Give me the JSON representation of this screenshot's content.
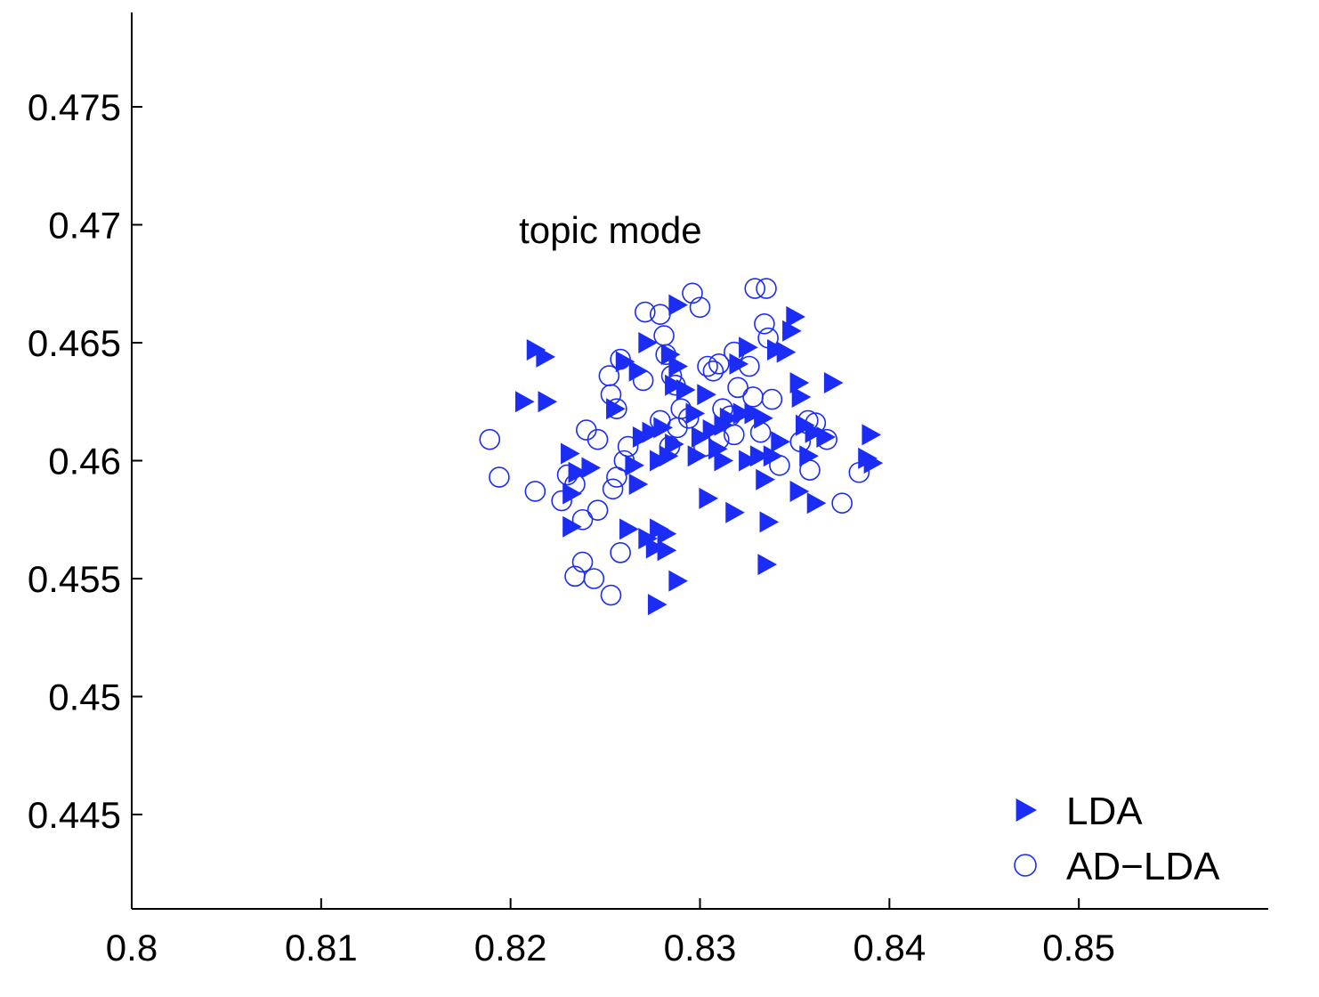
{
  "chart_data": {
    "type": "scatter",
    "title": "",
    "xlabel": "",
    "ylabel": "",
    "xlim": [
      0.8,
      0.86
    ],
    "ylim": [
      0.441,
      0.479
    ],
    "xticks": [
      0.8,
      0.81,
      0.82,
      0.83,
      0.84,
      0.85
    ],
    "yticks": [
      0.445,
      0.45,
      0.455,
      0.46,
      0.465,
      0.47,
      0.475
    ],
    "xtick_labels": [
      "0.8",
      "0.81",
      "0.82",
      "0.83",
      "0.84",
      "0.85"
    ],
    "ytick_labels": [
      "0.445",
      "0.45",
      "0.455",
      "0.46",
      "0.465",
      "0.47",
      "0.475"
    ],
    "grid": false,
    "legend_position": "bottom-right",
    "annotation": {
      "text": "topic mode",
      "x": 0.8295,
      "y": 0.4698
    },
    "series": [
      {
        "name": "LDA",
        "marker": "triangle-right-filled",
        "color": "#1a2cf5",
        "points": [
          [
            0.8213,
            0.4647
          ],
          [
            0.8218,
            0.4644
          ],
          [
            0.8207,
            0.4625
          ],
          [
            0.8219,
            0.4625
          ],
          [
            0.8231,
            0.4603
          ],
          [
            0.8235,
            0.4595
          ],
          [
            0.8242,
            0.4597
          ],
          [
            0.8232,
            0.4586
          ],
          [
            0.8232,
            0.4572
          ],
          [
            0.8255,
            0.4622
          ],
          [
            0.826,
            0.4642
          ],
          [
            0.8267,
            0.4638
          ],
          [
            0.8272,
            0.465
          ],
          [
            0.8265,
            0.4598
          ],
          [
            0.8267,
            0.459
          ],
          [
            0.8269,
            0.461
          ],
          [
            0.8274,
            0.4612
          ],
          [
            0.828,
            0.4614
          ],
          [
            0.8278,
            0.46
          ],
          [
            0.8283,
            0.4602
          ],
          [
            0.8286,
            0.4607
          ],
          [
            0.8262,
            0.4571
          ],
          [
            0.8272,
            0.4567
          ],
          [
            0.8278,
            0.4571
          ],
          [
            0.8282,
            0.4569
          ],
          [
            0.8276,
            0.4563
          ],
          [
            0.8282,
            0.4562
          ],
          [
            0.8288,
            0.4549
          ],
          [
            0.8277,
            0.4539
          ],
          [
            0.8288,
            0.4666
          ],
          [
            0.8284,
            0.4645
          ],
          [
            0.8288,
            0.464
          ],
          [
            0.8286,
            0.4632
          ],
          [
            0.8292,
            0.463
          ],
          [
            0.8297,
            0.462
          ],
          [
            0.8303,
            0.4628
          ],
          [
            0.83,
            0.461
          ],
          [
            0.8306,
            0.4613
          ],
          [
            0.8312,
            0.4615
          ],
          [
            0.8309,
            0.4605
          ],
          [
            0.8315,
            0.4618
          ],
          [
            0.8322,
            0.462
          ],
          [
            0.8328,
            0.462
          ],
          [
            0.8333,
            0.4618
          ],
          [
            0.8298,
            0.4602
          ],
          [
            0.8304,
            0.4584
          ],
          [
            0.8318,
            0.4578
          ],
          [
            0.8312,
            0.46
          ],
          [
            0.8325,
            0.46
          ],
          [
            0.8331,
            0.4602
          ],
          [
            0.8338,
            0.4602
          ],
          [
            0.8334,
            0.4592
          ],
          [
            0.8342,
            0.4608
          ],
          [
            0.8336,
            0.4574
          ],
          [
            0.8335,
            0.4556
          ],
          [
            0.832,
            0.4641
          ],
          [
            0.8325,
            0.4648
          ],
          [
            0.834,
            0.4647
          ],
          [
            0.8345,
            0.4646
          ],
          [
            0.8348,
            0.4655
          ],
          [
            0.835,
            0.4661
          ],
          [
            0.8352,
            0.4633
          ],
          [
            0.8353,
            0.4627
          ],
          [
            0.837,
            0.4633
          ],
          [
            0.8355,
            0.4615
          ],
          [
            0.836,
            0.4612
          ],
          [
            0.8366,
            0.461
          ],
          [
            0.8357,
            0.4602
          ],
          [
            0.8352,
            0.4587
          ],
          [
            0.8361,
            0.4582
          ],
          [
            0.8388,
            0.4601
          ],
          [
            0.8391,
            0.4599
          ],
          [
            0.839,
            0.4611
          ]
        ]
      },
      {
        "name": "AD−LDA",
        "marker": "circle-open",
        "color": "#1a2cf5",
        "points": [
          [
            0.8189,
            0.4609
          ],
          [
            0.8194,
            0.4593
          ],
          [
            0.8213,
            0.4587
          ],
          [
            0.8227,
            0.4583
          ],
          [
            0.823,
            0.4594
          ],
          [
            0.8234,
            0.459
          ],
          [
            0.8238,
            0.4575
          ],
          [
            0.8246,
            0.4579
          ],
          [
            0.824,
            0.4613
          ],
          [
            0.8246,
            0.4609
          ],
          [
            0.8252,
            0.4636
          ],
          [
            0.8253,
            0.4628
          ],
          [
            0.8256,
            0.4622
          ],
          [
            0.8258,
            0.4643
          ],
          [
            0.8254,
            0.4588
          ],
          [
            0.8256,
            0.4593
          ],
          [
            0.826,
            0.46
          ],
          [
            0.8262,
            0.4606
          ],
          [
            0.8258,
            0.4561
          ],
          [
            0.8238,
            0.4557
          ],
          [
            0.8234,
            0.4551
          ],
          [
            0.8244,
            0.455
          ],
          [
            0.8253,
            0.4543
          ],
          [
            0.827,
            0.4634
          ],
          [
            0.8271,
            0.4663
          ],
          [
            0.8279,
            0.4662
          ],
          [
            0.8281,
            0.4653
          ],
          [
            0.8282,
            0.4645
          ],
          [
            0.8285,
            0.4636
          ],
          [
            0.8287,
            0.4632
          ],
          [
            0.8279,
            0.4617
          ],
          [
            0.8288,
            0.4614
          ],
          [
            0.8284,
            0.4606
          ],
          [
            0.829,
            0.4622
          ],
          [
            0.8294,
            0.4618
          ],
          [
            0.8296,
            0.4671
          ],
          [
            0.83,
            0.4665
          ],
          [
            0.8304,
            0.464
          ],
          [
            0.8307,
            0.4638
          ],
          [
            0.831,
            0.4641
          ],
          [
            0.8312,
            0.4622
          ],
          [
            0.8316,
            0.4619
          ],
          [
            0.832,
            0.4631
          ],
          [
            0.8326,
            0.464
          ],
          [
            0.8318,
            0.4646
          ],
          [
            0.8302,
            0.4606
          ],
          [
            0.831,
            0.4609
          ],
          [
            0.8318,
            0.4611
          ],
          [
            0.8328,
            0.4627
          ],
          [
            0.8332,
            0.4612
          ],
          [
            0.8329,
            0.4673
          ],
          [
            0.8335,
            0.4673
          ],
          [
            0.8334,
            0.4658
          ],
          [
            0.8336,
            0.4652
          ],
          [
            0.8338,
            0.4626
          ],
          [
            0.8342,
            0.4598
          ],
          [
            0.8353,
            0.4608
          ],
          [
            0.8357,
            0.4617
          ],
          [
            0.8361,
            0.4616
          ],
          [
            0.8358,
            0.4596
          ],
          [
            0.8367,
            0.4609
          ],
          [
            0.8375,
            0.4582
          ],
          [
            0.8384,
            0.4595
          ]
        ]
      }
    ]
  }
}
